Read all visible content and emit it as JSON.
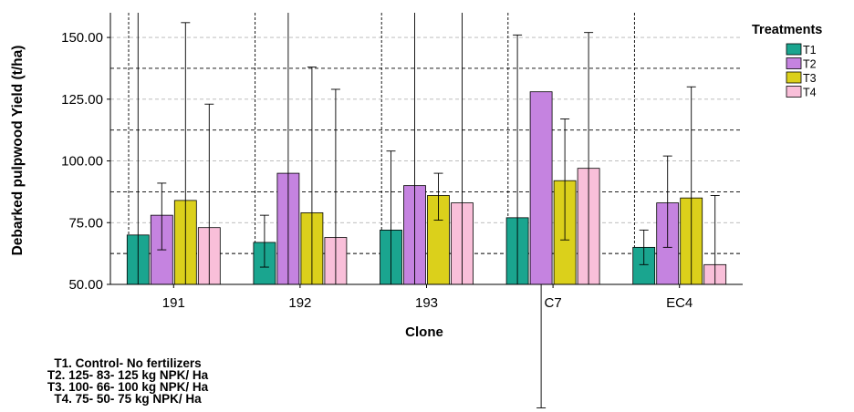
{
  "chart_data": {
    "type": "bar",
    "xlabel": "Clone",
    "ylabel": "Debarked pulpwood Yield (t/ha)",
    "categories": [
      "191",
      "192",
      "193",
      "C7",
      "EC4"
    ],
    "ylim": [
      50,
      160
    ],
    "yticks": [
      "50.00",
      "75.00",
      "100.00",
      "125.00",
      "150.00"
    ],
    "grid": true,
    "legend": {
      "title": "Treatments",
      "position": "right"
    },
    "series": [
      {
        "name": "T1",
        "color": "#1aa58f",
        "values": [
          70,
          67,
          72,
          77,
          65
        ],
        "err_low": [
          null,
          57,
          null,
          null,
          58
        ],
        "err_high": [
          160,
          78,
          104,
          151,
          72
        ]
      },
      {
        "name": "T2",
        "color": "#c583e0",
        "values": [
          78,
          95,
          90,
          128,
          83
        ],
        "err_low": [
          64,
          null,
          null,
          null,
          65
        ],
        "err_high": [
          91,
          160,
          160,
          null,
          102
        ]
      },
      {
        "name": "T3",
        "color": "#dbd01b",
        "values": [
          84,
          79,
          86,
          92,
          85
        ],
        "err_low": [
          null,
          null,
          76,
          68,
          null
        ],
        "err_high": [
          156,
          138,
          95,
          117,
          130
        ]
      },
      {
        "name": "T4",
        "color": "#f9bfd9",
        "values": [
          73,
          69,
          83,
          97,
          58
        ],
        "err_low": [
          null,
          null,
          null,
          null,
          null
        ],
        "err_high": [
          123,
          129,
          160,
          152,
          86
        ]
      }
    ]
  },
  "footnotes": [
    "T1. Control- No fertilizers",
    "T2. 125- 83- 125 kg NPK/ Ha",
    "T3. 100- 66- 100 kg NPK/ Ha",
    "T4. 75- 50- 75 kg NPK/ Ha"
  ]
}
